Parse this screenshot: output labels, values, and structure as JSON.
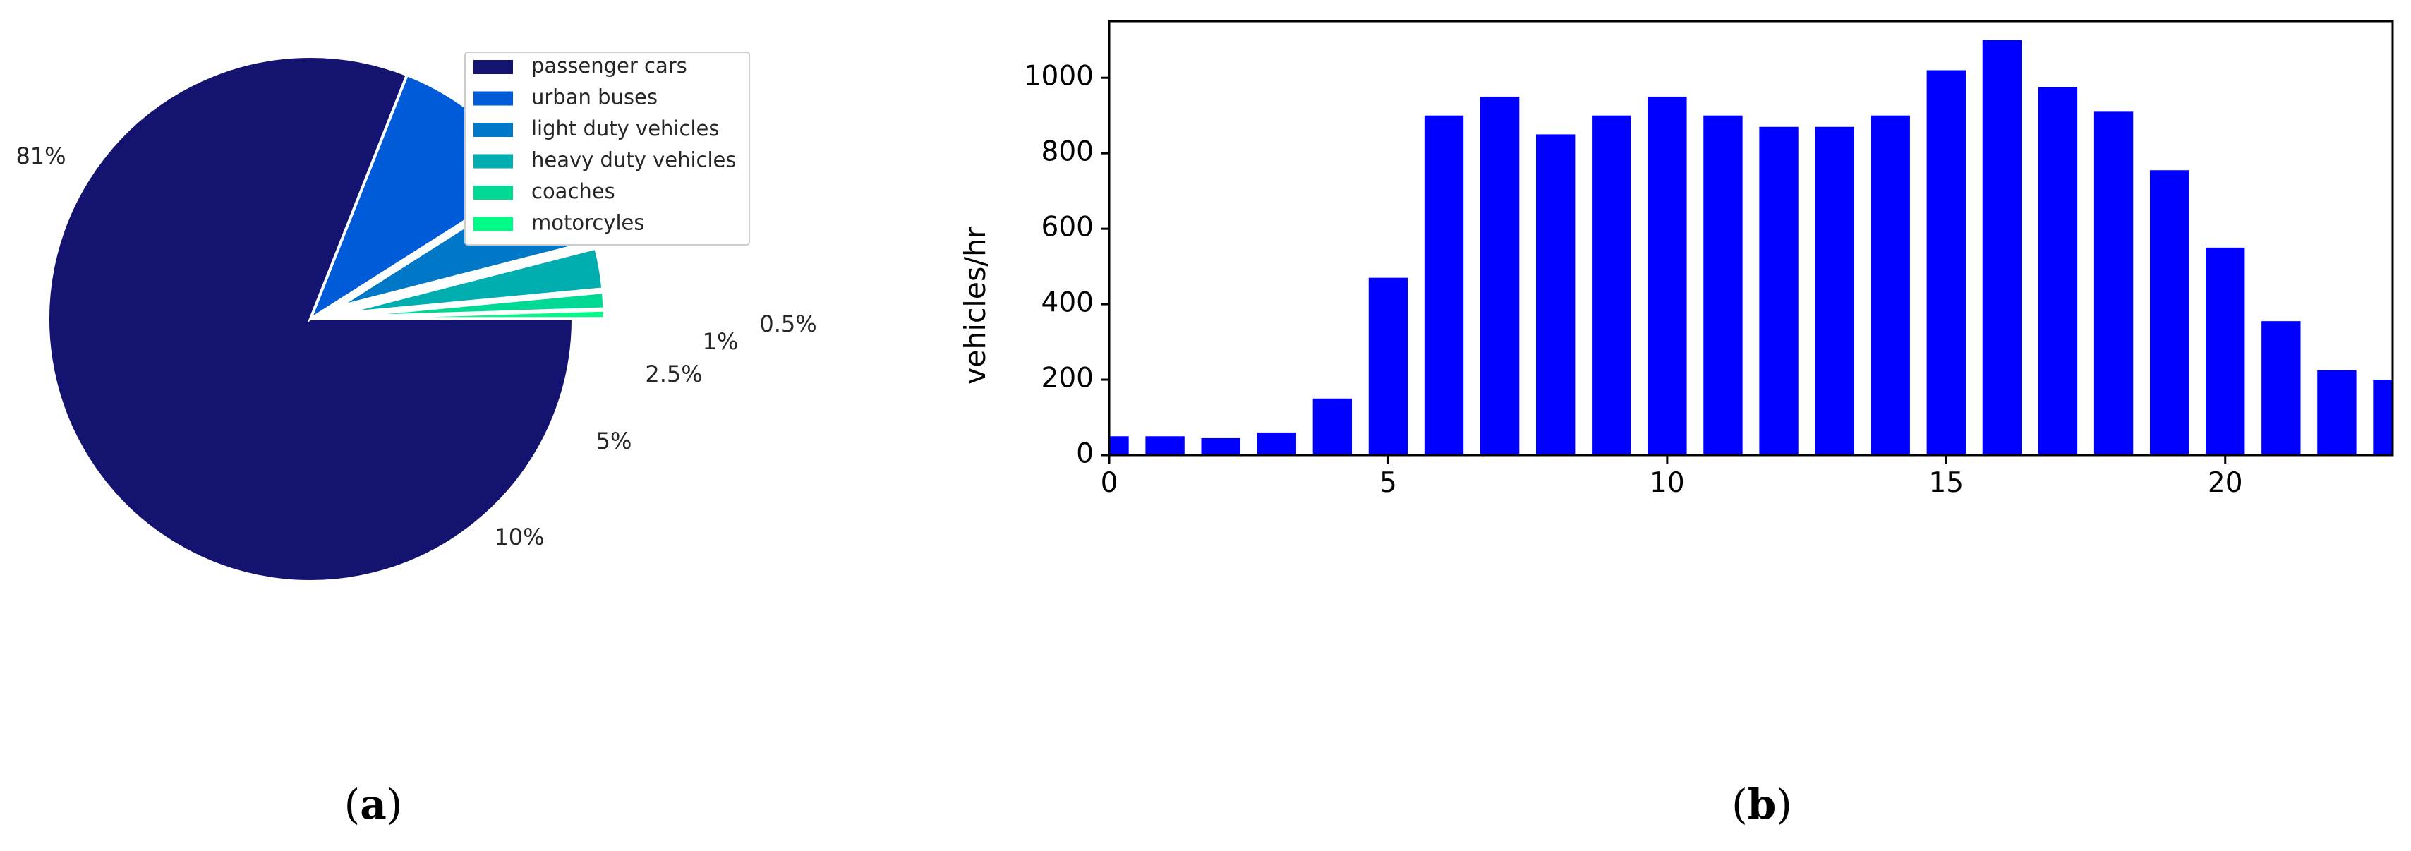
{
  "chart_data": [
    {
      "panel": "(a)",
      "type": "pie",
      "categories": [
        "passenger cars",
        "urban buses",
        "light duty vehicles",
        "heavy duty vehicles",
        "coaches",
        "motorcyles"
      ],
      "values": [
        81,
        10,
        5,
        2.5,
        1,
        0.5
      ],
      "labels": [
        "81%",
        "10%",
        "5%",
        "2.5%",
        "1%",
        "0.5%"
      ],
      "exploded": [
        false,
        false,
        true,
        true,
        true,
        true
      ],
      "colors": [
        "#141470",
        "#005bd8",
        "#0077c7",
        "#00adaf",
        "#00d994",
        "#00fa87"
      ],
      "legend": {
        "entries": [
          "passenger cars",
          "urban buses",
          "light duty vehicles",
          "heavy duty vehicles",
          "coaches",
          "motorcyles"
        ],
        "placement": "top-right"
      }
    },
    {
      "panel": "(b)",
      "type": "bar",
      "x": [
        0,
        1,
        2,
        3,
        4,
        5,
        6,
        7,
        8,
        9,
        10,
        11,
        12,
        13,
        14,
        15,
        16,
        17,
        18,
        19,
        20,
        21,
        22,
        23
      ],
      "values": [
        50,
        50,
        45,
        60,
        150,
        470,
        900,
        950,
        850,
        900,
        950,
        900,
        870,
        870,
        900,
        1020,
        1100,
        975,
        910,
        755,
        550,
        355,
        225,
        200
      ],
      "xlim": [
        0,
        23
      ],
      "ylim": [
        0,
        1150
      ],
      "xticks": [
        0,
        5,
        10,
        15,
        20
      ],
      "yticks": [
        0,
        200,
        400,
        600,
        800,
        1000
      ],
      "xlabel": "",
      "ylabel": "vehicles/hr",
      "bar_color": "#0000ff"
    }
  ]
}
